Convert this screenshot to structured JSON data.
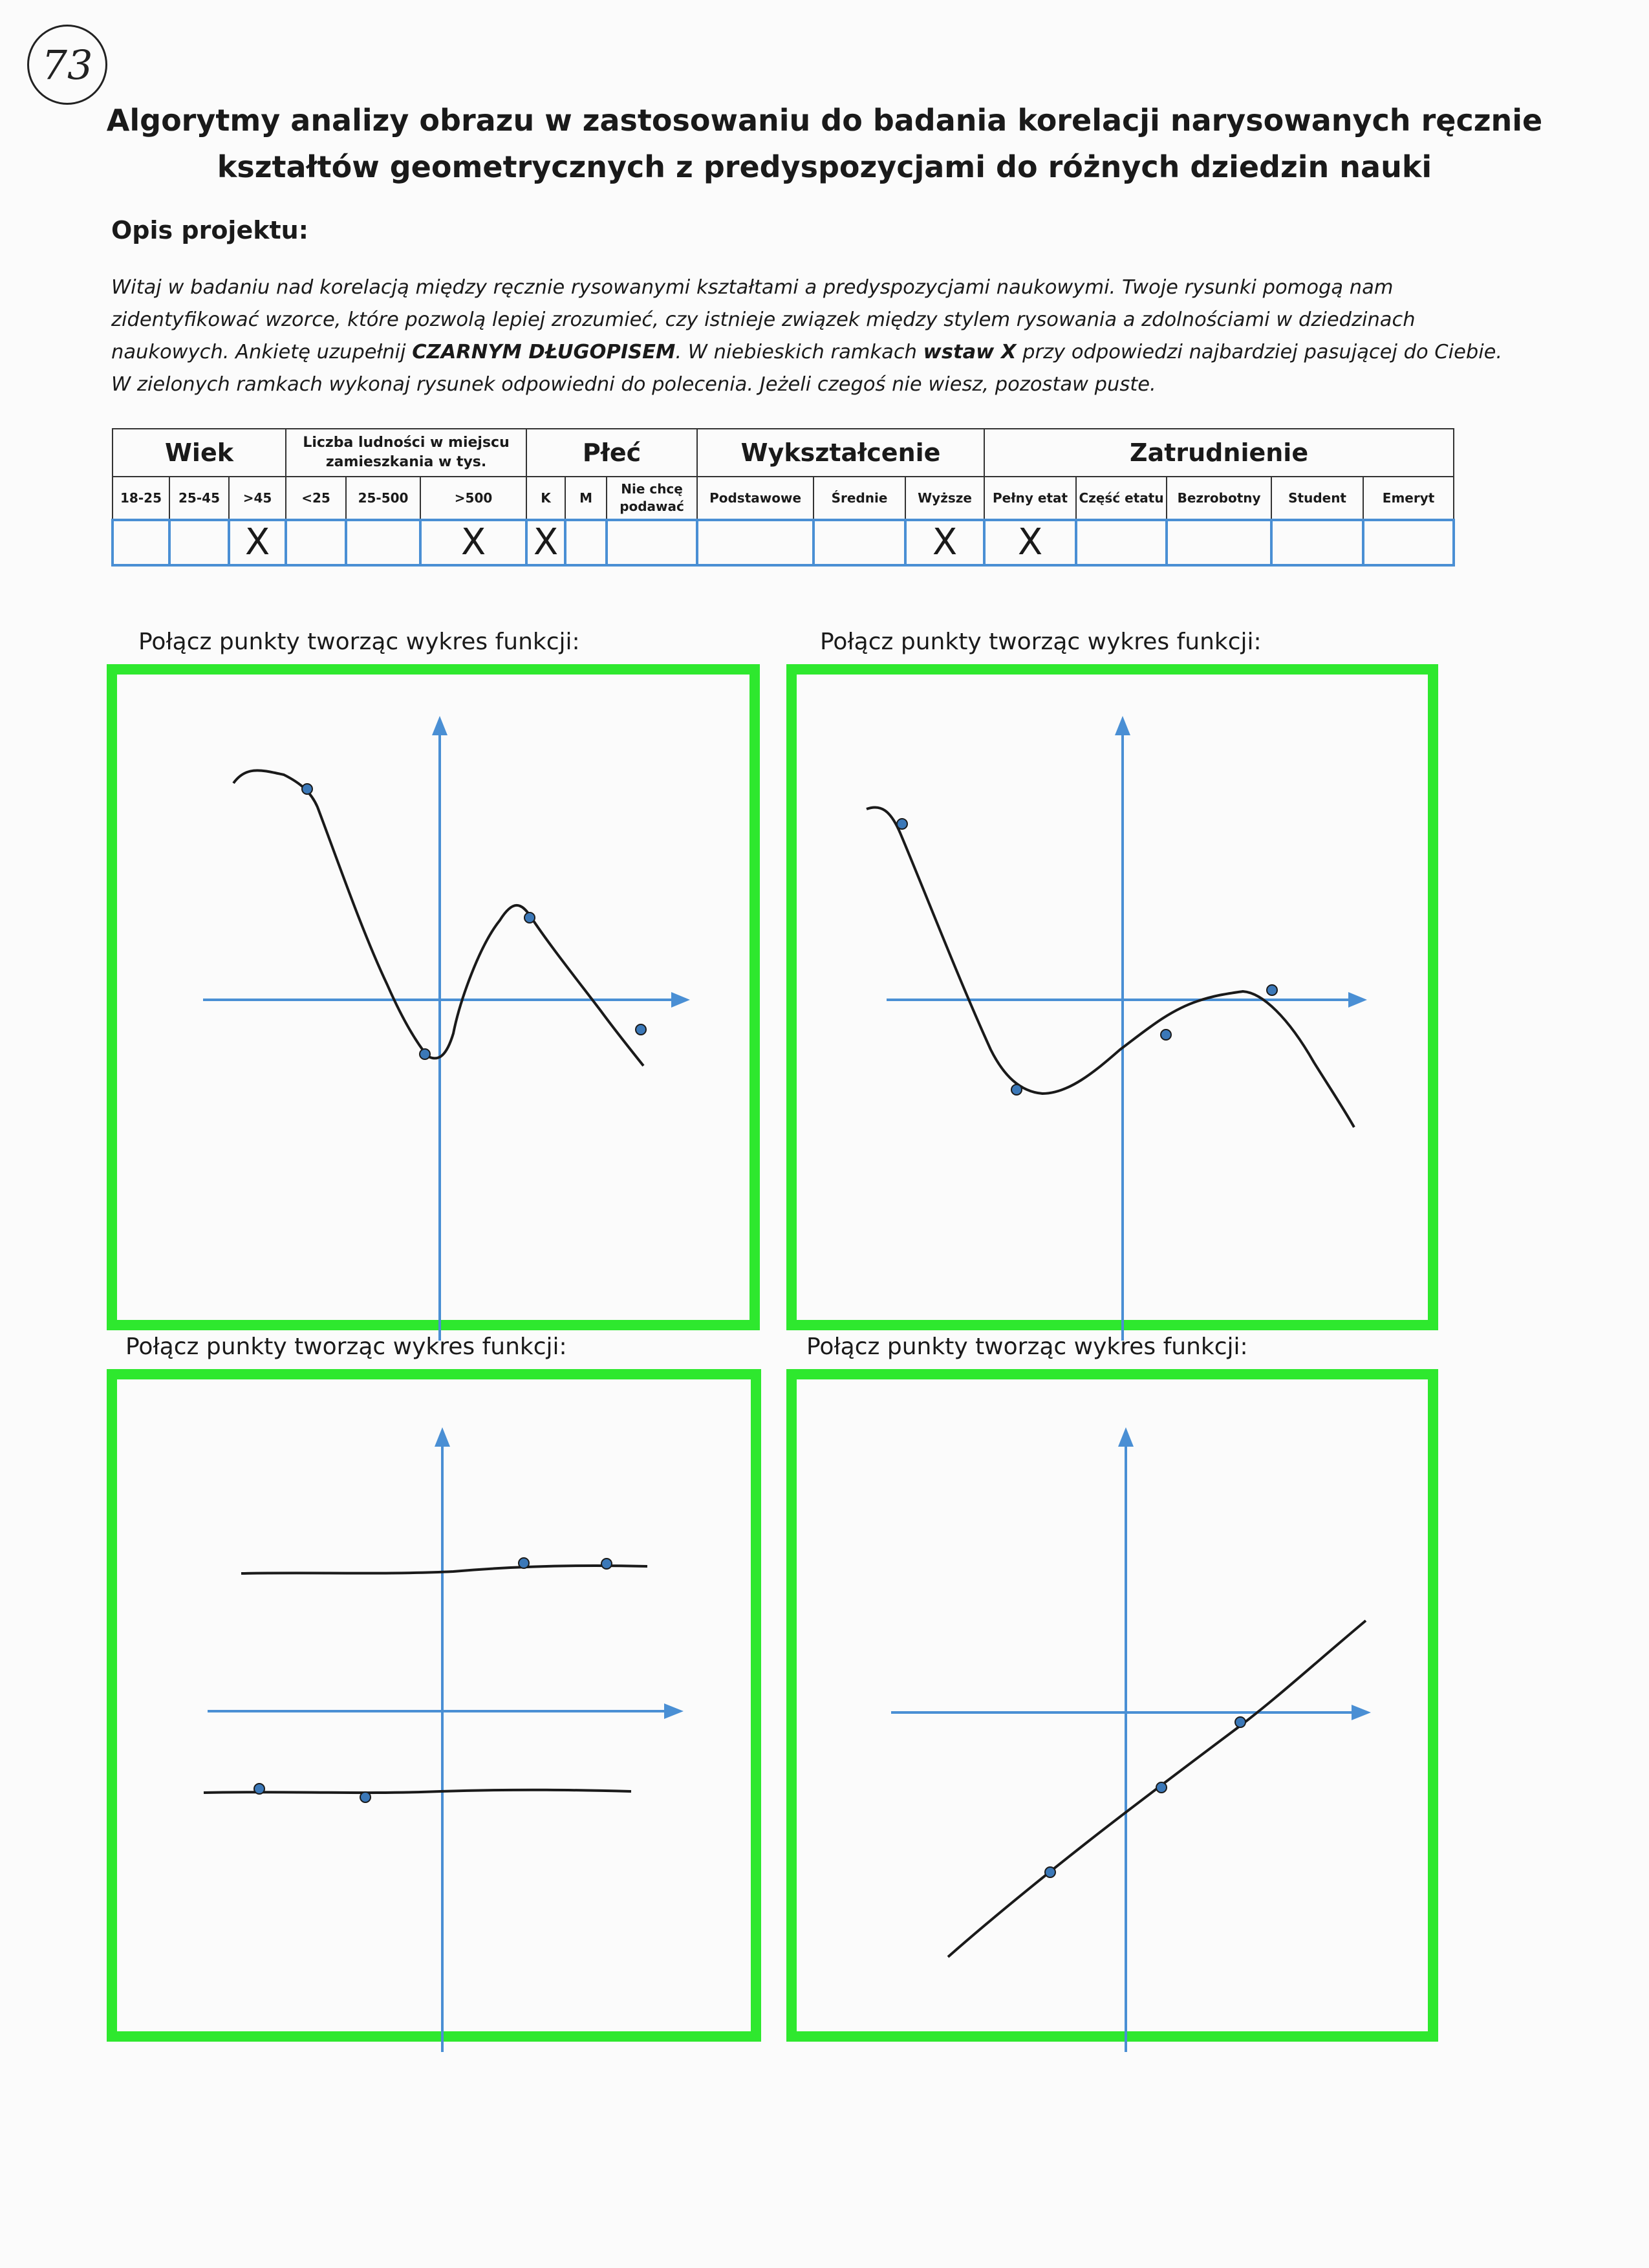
{
  "page_number": "73",
  "title_line1": "Algorytmy analizy obrazu w zastosowaniu do badania korelacji narysowanych ręcznie",
  "title_line2": "kształtów geometrycznych z predyspozycjami do różnych dziedzin nauki",
  "section_heading": "Opis projektu:",
  "intro": {
    "part1": "Witaj w badaniu nad korelacją między ręcznie rysowanymi kształtami a predyspozycjami naukowymi. Twoje rysunki pomogą nam zidentyfikować wzorce, które pozwolą lepiej zrozumieć, czy istnieje związek między stylem rysowania a zdolnościami w dziedzinach naukowych. Ankietę uzupełnij ",
    "bold1": "CZARNYM DŁUGOPISEM",
    "part2": ". W niebieskich ramkach ",
    "bold2": "wstaw X",
    "part3": " przy odpowiedzi najbardziej pasującej do Ciebie. W zielonych ramkach wykonaj rysunek odpowiedni do polecenia. Jeżeli czegoś nie wiesz, pozostaw puste."
  },
  "table": {
    "groups": {
      "wiek": "Wiek",
      "liczba": "Liczba ludności w miejscu zamieszkania w tys.",
      "plec": "Płeć",
      "wyksztalcenie": "Wykształcenie",
      "zatrudnienie": "Zatrudnienie"
    },
    "labels": {
      "age_18_25": "18-25",
      "age_25_45": "25-45",
      "age_45": ">45",
      "pop_lt25": "<25",
      "pop_25_500": "25-500",
      "pop_gt500": ">500",
      "sex_k": "K",
      "sex_m": "M",
      "sex_none": "Nie chcę podawać",
      "edu_podstawowe": "Podstawowe",
      "edu_srednie": "Średnie",
      "edu_wyzsze": "Wyższe",
      "job_pelny": "Pełny etat",
      "job_czesc": "Część etatu",
      "job_bezrobotny": "Bezrobotny",
      "job_student": "Student",
      "job_emeryt": "Emeryt"
    },
    "marks": {
      "age_18_25": "",
      "age_25_45": "",
      "age_45": "X",
      "pop_lt25": "",
      "pop_25_500": "",
      "pop_gt500": "X",
      "sex_k": "X",
      "sex_m": "",
      "sex_none": "",
      "edu_podstawowe": "",
      "edu_srednie": "",
      "edu_wyzsze": "X",
      "job_pelny": "X",
      "job_czesc": "",
      "job_bezrobotny": "",
      "job_student": "",
      "job_emeryt": ""
    }
  },
  "panels": [
    {
      "prompt": "Połącz punkty tworząc wykres funkcji:"
    },
    {
      "prompt": "Połącz punkty tworząc wykres funkcji:"
    },
    {
      "prompt": "Połącz punkty tworząc wykres funkcji:"
    },
    {
      "prompt": "Połącz punkty tworząc wykres funkcji:"
    }
  ],
  "colors": {
    "frame_green": "#2ee82e",
    "axis_blue": "#4a8fd4",
    "point_blue": "#3b78b8",
    "ink": "#1a1a1a"
  }
}
